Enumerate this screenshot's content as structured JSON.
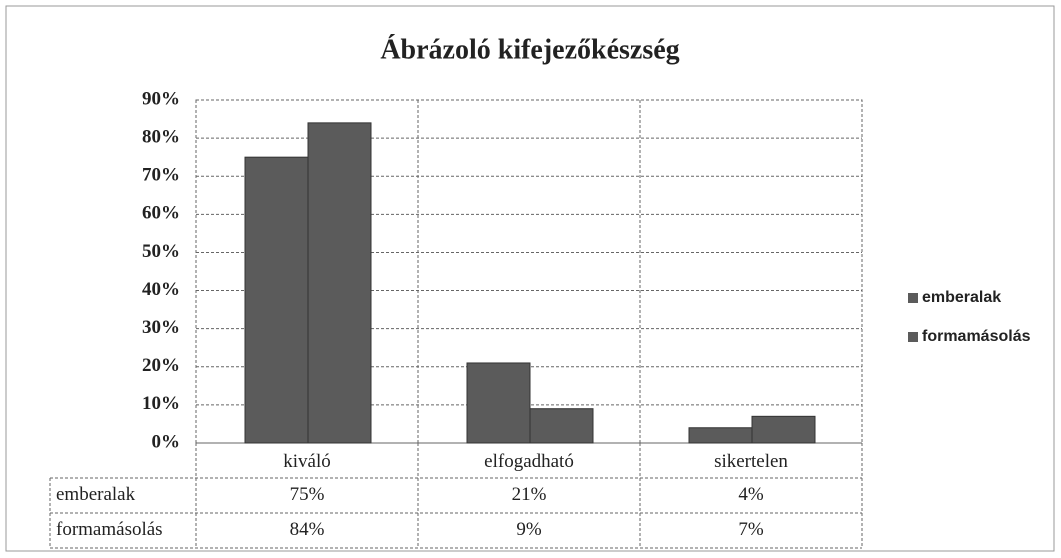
{
  "chart_data": {
    "type": "bar",
    "title": "Ábrázoló kifejezőkészség",
    "categories": [
      "kiváló",
      "elfogadható",
      "sikertelen"
    ],
    "series": [
      {
        "name": "emberalak",
        "color": "#5b5b5b",
        "values": [
          75,
          21,
          4
        ],
        "value_labels": [
          "75%",
          "21%",
          "4%"
        ]
      },
      {
        "name": "formamásolás",
        "color": "#5b5b5b",
        "values": [
          84,
          9,
          7
        ],
        "value_labels": [
          "84%",
          "9%",
          "7%"
        ]
      }
    ],
    "ylim": [
      0,
      90
    ],
    "yticks": [
      {
        "value": 0,
        "label": "0%"
      },
      {
        "value": 10,
        "label": "10%"
      },
      {
        "value": 20,
        "label": "20%"
      },
      {
        "value": 30,
        "label": "30%"
      },
      {
        "value": 40,
        "label": "40%"
      },
      {
        "value": 50,
        "label": "50%"
      },
      {
        "value": 60,
        "label": "60%"
      },
      {
        "value": 70,
        "label": "70%"
      },
      {
        "value": 80,
        "label": "80%"
      },
      {
        "value": 90,
        "label": "90%"
      }
    ],
    "grid": true,
    "legend": "right"
  }
}
